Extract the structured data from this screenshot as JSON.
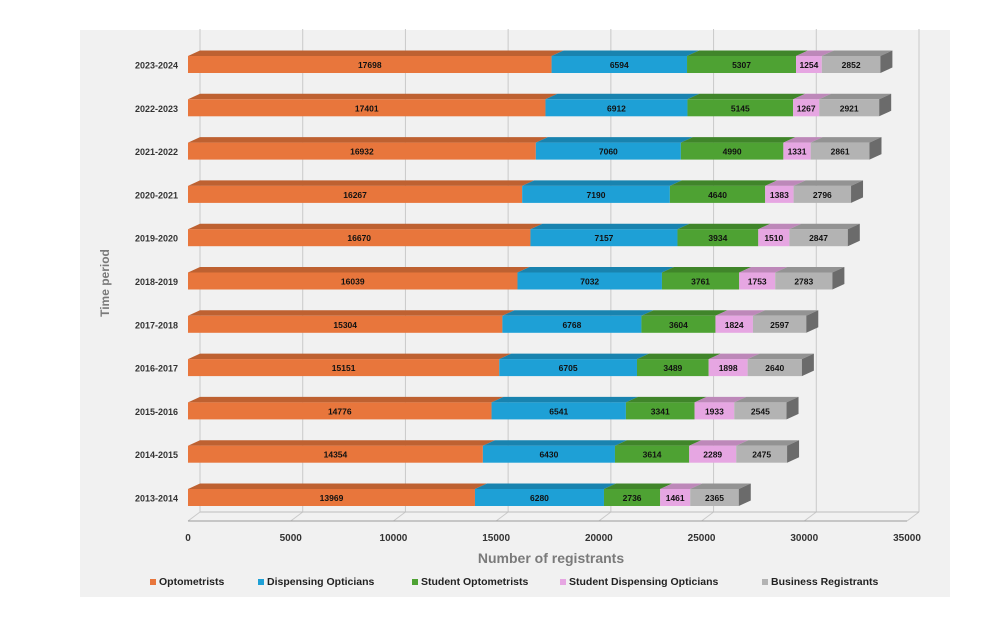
{
  "chart_data": {
    "type": "bar",
    "orientation": "horizontal",
    "stacked": true,
    "style": "3d",
    "grid": true,
    "legend_position": "bottom",
    "xlabel": "Number of registrants",
    "ylabel": "Time period",
    "xlim": [
      0,
      35000
    ],
    "xticks": [
      "0",
      "5000",
      "10000",
      "15000",
      "20000",
      "25000",
      "30000",
      "35000"
    ],
    "categories": [
      "2023-2024",
      "2022-2023",
      "2021-2022",
      "2020-2021",
      "2019-2020",
      "2018-2019",
      "2017-2018",
      "2016-2017",
      "2015-2016",
      "2014-2015",
      "2013-2014"
    ],
    "series": [
      {
        "name": "Optometrists",
        "color": "#e8763c",
        "values": [
          17698,
          17401,
          16932,
          16267,
          16670,
          16039,
          15304,
          15151,
          14776,
          14354,
          13969
        ]
      },
      {
        "name": "Dispensing Opticians",
        "color": "#1ea0d6",
        "values": [
          6594,
          6912,
          7060,
          7190,
          7157,
          7032,
          6768,
          6705,
          6541,
          6430,
          6280
        ]
      },
      {
        "name": "Student Optometrists",
        "color": "#4ea233",
        "values": [
          5307,
          5145,
          4990,
          4640,
          3934,
          3761,
          3604,
          3489,
          3341,
          3614,
          2736
        ]
      },
      {
        "name": "Student Dispensing Opticians",
        "color": "#e6a6e2",
        "values": [
          1254,
          1267,
          1331,
          1383,
          1510,
          1753,
          1824,
          1898,
          1933,
          2289,
          1461
        ]
      },
      {
        "name": "Business Registrants",
        "color": "#b3b3b3",
        "values": [
          2852,
          2921,
          2861,
          2796,
          2847,
          2783,
          2597,
          2640,
          2545,
          2475,
          2365
        ]
      }
    ]
  }
}
